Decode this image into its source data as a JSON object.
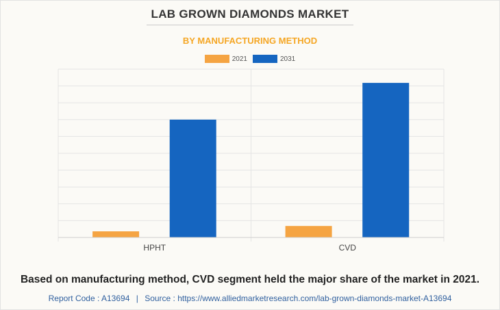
{
  "header": {
    "title": "LAB GROWN DIAMONDS MARKET",
    "subtitle": "BY MANUFACTURING METHOD"
  },
  "chart_data": {
    "type": "bar",
    "title": "LAB GROWN DIAMONDS MARKET",
    "subtitle": "BY MANUFACTURING METHOD",
    "categories": [
      "HPHT",
      "CVD"
    ],
    "series": [
      {
        "name": "2021",
        "color": "#f5a442",
        "values": [
          0.4,
          0.75
        ]
      },
      {
        "name": "2031",
        "color": "#1565c0",
        "values": [
          7.7,
          10.1
        ]
      }
    ],
    "ylim": [
      0,
      11
    ],
    "gridlines": 10,
    "xlabel": "",
    "ylabel": "",
    "legend_position": "top-center",
    "y_axis_labels_shown": false
  },
  "caption": "Based on manufacturing method, CVD segment held the major share of the market in 2021.",
  "footer": {
    "report_code": "Report Code : A13694",
    "separator": "|",
    "source": "Source : https://www.alliedmarketresearch.com/lab-grown-diamonds-market-A13694"
  }
}
